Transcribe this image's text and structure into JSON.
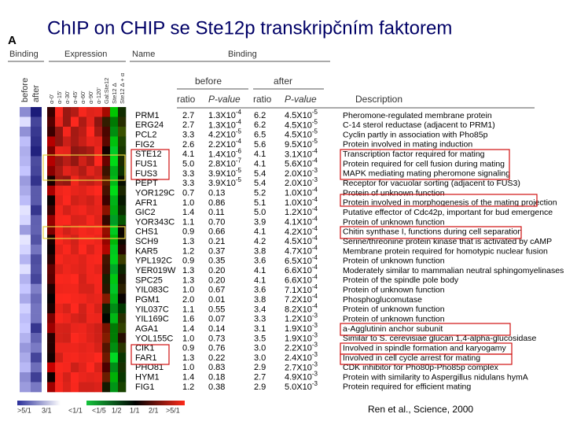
{
  "title": "ChIP on CHIP se Ste12p transkripčním faktorem",
  "figure": {
    "panel": "A",
    "headers": {
      "binding": "Binding",
      "expression": "Expression",
      "name": "Name",
      "binding_group": "Binding",
      "before": "before",
      "after": "after",
      "ratio_before": "ratio",
      "p_before": "P-value",
      "ratio_after": "ratio",
      "p_after": "P-value",
      "description": "Description"
    },
    "binding_columns": [
      "before",
      "after"
    ],
    "expression_columns": [
      "α-0'",
      "α-15'",
      "α-30'",
      "α-45'",
      "α-60'",
      "α-90'",
      "α-120'",
      "Gal:Ste12",
      "Ste12 Δ",
      "Ste12 Δ + α"
    ],
    "rows": [
      [
        "PRM1",
        "2.7",
        {
          "base": "1.3X10",
          "exp": "-4"
        },
        "6.2",
        {
          "base": "4.5X10",
          "exp": "-5"
        },
        "Pheromone-regulated membrane protein"
      ],
      [
        "ERG24",
        "2.7",
        {
          "base": "1.3X10",
          "exp": "-4"
        },
        "6.2",
        {
          "base": "4.5X10",
          "exp": "-5"
        },
        "C-14 sterol reductase (adjacent to PRM1)"
      ],
      [
        "PCL2",
        "3.3",
        {
          "base": "4.2X10",
          "exp": "-5"
        },
        "6.5",
        {
          "base": "4.5X10",
          "exp": "-5"
        },
        "Cyclin partly in association with Pho85p"
      ],
      [
        "FIG2",
        "2.6",
        {
          "base": "2.2X10",
          "exp": "-4"
        },
        "5.6",
        {
          "base": "9.5X10",
          "exp": "-5"
        },
        "Protein involved in mating induction"
      ],
      [
        "STE12",
        "4.1",
        {
          "base": "1.4X10",
          "exp": "-6"
        },
        "4.1",
        {
          "base": "3.1X10",
          "exp": "-4"
        },
        "Transcription factor required for mating"
      ],
      [
        "FUS1",
        "5.0",
        {
          "base": "2.8X10",
          "exp": "-7"
        },
        "4.1",
        {
          "base": "5.6X10",
          "exp": "-4"
        },
        "Protein required for cell fusion during mating"
      ],
      [
        "FUS3",
        "3.3",
        {
          "base": "3.9X10",
          "exp": "-5"
        },
        "5.4",
        {
          "base": "2.0X10",
          "exp": "-3"
        },
        "MAPK mediating mating pheromone signaling"
      ],
      [
        "PEPT",
        "3.3",
        {
          "base": "3.9X10",
          "exp": "-5"
        },
        "5.4",
        {
          "base": "2.0X10",
          "exp": "-3"
        },
        "Receptor for vacuolar sorting (adjacent to FUS3)"
      ],
      [
        "YOR129C",
        "0.7",
        "0.13",
        "5.2",
        {
          "base": "1.0X10",
          "exp": "-4"
        },
        "Protein of unknown function"
      ],
      [
        "AFR1",
        "1.0",
        "0.86",
        "5.1",
        {
          "base": "1.0X10",
          "exp": "-4"
        },
        "Protein involved in morphogenesis of the mating projection"
      ],
      [
        "GIC2",
        "1.4",
        "0.11",
        "5.0",
        {
          "base": "1.2X10",
          "exp": "-4"
        },
        "Putative effector of Cdc42p, important for bud emergence"
      ],
      [
        "YOR343C",
        "1.1",
        "0.70",
        "3.9",
        {
          "base": "4.1X10",
          "exp": "-4"
        },
        "Protein of unknown function"
      ],
      [
        "CHS1",
        "0.9",
        "0.66",
        "4.1",
        {
          "base": "4.2X10",
          "exp": "-4"
        },
        "Chitin synthase I, functions during cell separation"
      ],
      [
        "SCH9",
        "1.3",
        "0.21",
        "4.2",
        {
          "base": "4.5X10",
          "exp": "-4"
        },
        "Serine/threonine protein kinase that is activated by cAMP"
      ],
      [
        "KAR5",
        "1.2",
        "0.37",
        "3.8",
        {
          "base": "4.7X10",
          "exp": "-4"
        },
        "Membrane protein required for homotypic nuclear fusion"
      ],
      [
        "YPL192C",
        "0.9",
        "0.35",
        "3.6",
        {
          "base": "6.5X10",
          "exp": "-4"
        },
        "Protein of unknown function"
      ],
      [
        "YER019W",
        "1.3",
        "0.20",
        "4.1",
        {
          "base": "6.6X10",
          "exp": "-4"
        },
        "Moderately similar to mammalian neutral sphingomyelinases"
      ],
      [
        "SPC25",
        "1.3",
        "0.20",
        "4.1",
        {
          "base": "6.6X10",
          "exp": "-4"
        },
        "Protein of the spindle pole body"
      ],
      [
        "YIL083C",
        "1.0",
        "0.67",
        "3.6",
        {
          "base": "7.1X10",
          "exp": "-4"
        },
        "Protein of unknown function"
      ],
      [
        "PGM1",
        "2.0",
        "0.01",
        "3.8",
        {
          "base": "7.2X10",
          "exp": "-4"
        },
        "Phosphoglucomutase"
      ],
      [
        "YIL037C",
        "1.1",
        "0.55",
        "3.4",
        {
          "base": "8.2X10",
          "exp": "-4"
        },
        "Protein of unknown function"
      ],
      [
        "YIL169C",
        "1.6",
        "0.07",
        "3.3",
        {
          "base": "1.2X10",
          "exp": "-3"
        },
        "Protein of unknown function"
      ],
      [
        "AGA1",
        "1.4",
        "0.14",
        "3.1",
        {
          "base": "1.9X10",
          "exp": "-3"
        },
        "a-Agglutinin anchor subunit"
      ],
      [
        "YOL155C",
        "1.0",
        "0.73",
        "3.5",
        {
          "base": "1.9X10",
          "exp": "-3"
        },
        "Similar to S. cerevisiae glucan 1,4-alpha-glucosidase"
      ],
      [
        "CIK1",
        "0.9",
        "0.76",
        "3.0",
        {
          "base": "2.2X10",
          "exp": "-3"
        },
        "Involved in spindle formation and karyogamy"
      ],
      [
        "FAR1",
        "1.3",
        "0.22",
        "3.0",
        {
          "base": "2.4X10",
          "exp": "-3"
        },
        "Involved in cell cycle arrest for mating"
      ],
      [
        "PHO81",
        "1.0",
        "0.83",
        "2.9",
        {
          "base": "2.7X10",
          "exp": "-3"
        },
        "CDK inhibitor for Pho80p-Pho85p complex"
      ],
      [
        "HYM1",
        "1.4",
        "0.18",
        "2.7",
        {
          "base": "4.9X10",
          "exp": "-3"
        },
        "Protein with similarity to Aspergillus nidulans hymA"
      ],
      [
        "FIG1",
        "1.2",
        "0.38",
        "2.9",
        {
          "base": "5.0X10",
          "exp": "-3"
        },
        "Protein required for efficient mating"
      ]
    ],
    "legend": [
      ">5/1",
      "3/1",
      "<1/1",
      "<1/5",
      "1/2",
      "1/1",
      "2/1",
      ">5/1"
    ]
  },
  "citation": "Ren et al., Science, 2000"
}
